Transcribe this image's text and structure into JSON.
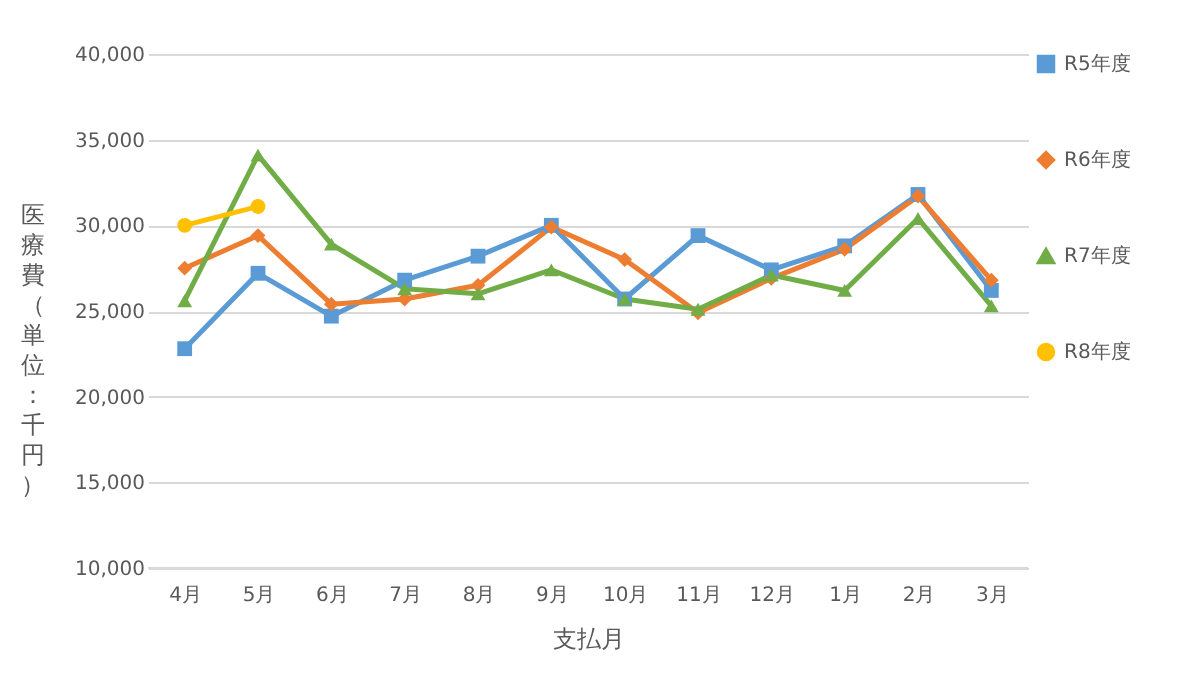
{
  "chart_data": {
    "type": "line",
    "xlabel": "支払月",
    "ylabel": "医療費（単位：千円）",
    "categories": [
      "4月",
      "5月",
      "6月",
      "7月",
      "8月",
      "9月",
      "10月",
      "11月",
      "12月",
      "1月",
      "2月",
      "3月"
    ],
    "series": [
      {
        "name": "R5年度",
        "color": "#5b9bd5",
        "marker": "square",
        "values": [
          22800,
          27200,
          24700,
          26800,
          28200,
          30000,
          25700,
          29400,
          27400,
          28800,
          31800,
          26200
        ]
      },
      {
        "name": "R6年度",
        "color": "#ed7d31",
        "marker": "diamond",
        "values": [
          27500,
          29400,
          25400,
          25700,
          26500,
          29900,
          28000,
          24900,
          26900,
          28600,
          31700,
          26800
        ]
      },
      {
        "name": "R7年度",
        "color": "#70ad47",
        "marker": "triangle",
        "values": [
          25600,
          34100,
          28900,
          26300,
          26000,
          27400,
          25700,
          25100,
          27100,
          26200,
          30400,
          25300
        ]
      },
      {
        "name": "R8年度",
        "color": "#ffc000",
        "marker": "circle",
        "values": [
          30000,
          31100,
          null,
          null,
          null,
          null,
          null,
          null,
          null,
          null,
          null,
          null
        ]
      }
    ],
    "ylim": [
      10000,
      40000
    ],
    "yticks": [
      {
        "value": 10000,
        "label": "10,000"
      },
      {
        "value": 15000,
        "label": "15,000"
      },
      {
        "value": 20000,
        "label": "20,000"
      },
      {
        "value": 25000,
        "label": "25,000"
      },
      {
        "value": 30000,
        "label": "30,000"
      },
      {
        "value": 35000,
        "label": "35,000"
      },
      {
        "value": 40000,
        "label": "40,000"
      }
    ],
    "grid": "y",
    "legend": "right",
    "line_style": "solid"
  }
}
